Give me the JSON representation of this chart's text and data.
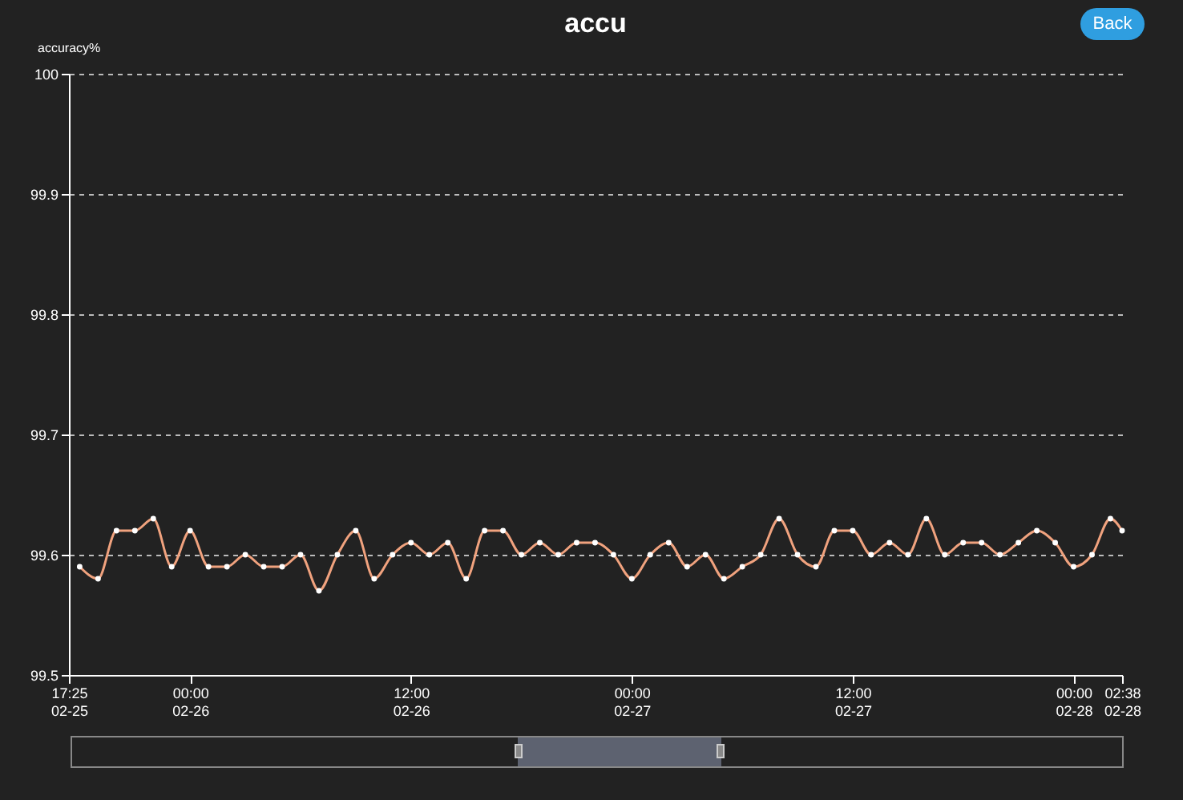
{
  "chart_data": {
    "type": "line",
    "title": "accu",
    "ylabel": "accuracy%",
    "annotations": [
      "Back"
    ],
    "x": [
      "--02-25T18:00",
      "--02-25T19:00",
      "--02-25T20:00",
      "--02-25T21:00",
      "--02-25T22:00",
      "--02-25T23:00",
      "--02-26T00:00",
      "--02-26T01:00",
      "--02-26T02:00",
      "--02-26T03:00",
      "--02-26T04:00",
      "--02-26T05:00",
      "--02-26T06:00",
      "--02-26T07:00",
      "--02-26T08:00",
      "--02-26T09:00",
      "--02-26T10:00",
      "--02-26T11:00",
      "--02-26T12:00",
      "--02-26T13:00",
      "--02-26T14:00",
      "--02-26T15:00",
      "--02-26T16:00",
      "--02-26T17:00",
      "--02-26T18:00",
      "--02-26T19:00",
      "--02-26T20:00",
      "--02-26T21:00",
      "--02-26T22:00",
      "--02-26T23:00",
      "--02-27T00:00",
      "--02-27T01:00",
      "--02-27T02:00",
      "--02-27T03:00",
      "--02-27T04:00",
      "--02-27T05:00",
      "--02-27T06:00",
      "--02-27T07:00",
      "--02-27T08:00",
      "--02-27T09:00",
      "--02-27T10:00",
      "--02-27T11:00",
      "--02-27T12:00",
      "--02-27T13:00",
      "--02-27T14:00",
      "--02-27T15:00",
      "--02-27T16:00",
      "--02-27T17:00",
      "--02-27T18:00",
      "--02-27T19:00",
      "--02-27T20:00",
      "--02-27T21:00",
      "--02-27T22:00",
      "--02-27T23:00",
      "--02-28T00:00",
      "--02-28T01:00",
      "--02-28T02:00",
      "--02-28T02:38"
    ],
    "series": [
      {
        "color": "#f0a27e",
        "values": [
          99.59,
          99.58,
          99.62,
          99.62,
          99.63,
          99.59,
          99.62,
          99.59,
          99.59,
          99.6,
          99.59,
          99.59,
          99.6,
          99.57,
          99.6,
          99.62,
          99.58,
          99.6,
          99.61,
          99.6,
          99.61,
          99.58,
          99.62,
          99.62,
          99.6,
          99.61,
          99.6,
          99.61,
          99.61,
          99.6,
          99.58,
          99.6,
          99.61,
          99.59,
          99.6,
          99.58,
          99.59,
          99.6,
          99.63,
          99.6,
          99.59,
          99.62,
          99.62,
          99.6,
          99.61,
          99.6,
          99.63,
          99.6,
          99.61,
          99.61,
          99.6,
          99.61,
          99.62,
          99.61,
          99.59,
          99.6,
          99.63,
          99.62
        ]
      }
    ],
    "xlim": [
      "--02-25T17:25",
      "--02-28T02:38"
    ],
    "xticks": [
      {
        "value": "--02-25T17:25",
        "label": "17:25\n02-25"
      },
      {
        "value": "--02-26T00:00",
        "label": "00:00\n02-26"
      },
      {
        "value": "--02-26T12:00",
        "label": "12:00\n02-26"
      },
      {
        "value": "--02-27T00:00",
        "label": "00:00\n02-27"
      },
      {
        "value": "--02-27T12:00",
        "label": "12:00\n02-27"
      },
      {
        "value": "--02-28T00:00",
        "label": "00:00\n02-28"
      },
      {
        "value": "--02-28T02:38",
        "label": "02:38\n02-28"
      }
    ],
    "ylim": [
      99.5,
      100
    ],
    "yticks": [
      99.5,
      99.6,
      99.7,
      99.8,
      99.9,
      100
    ],
    "grid": "y",
    "marker": "circle",
    "line_style": "solid",
    "legend": false
  }
}
